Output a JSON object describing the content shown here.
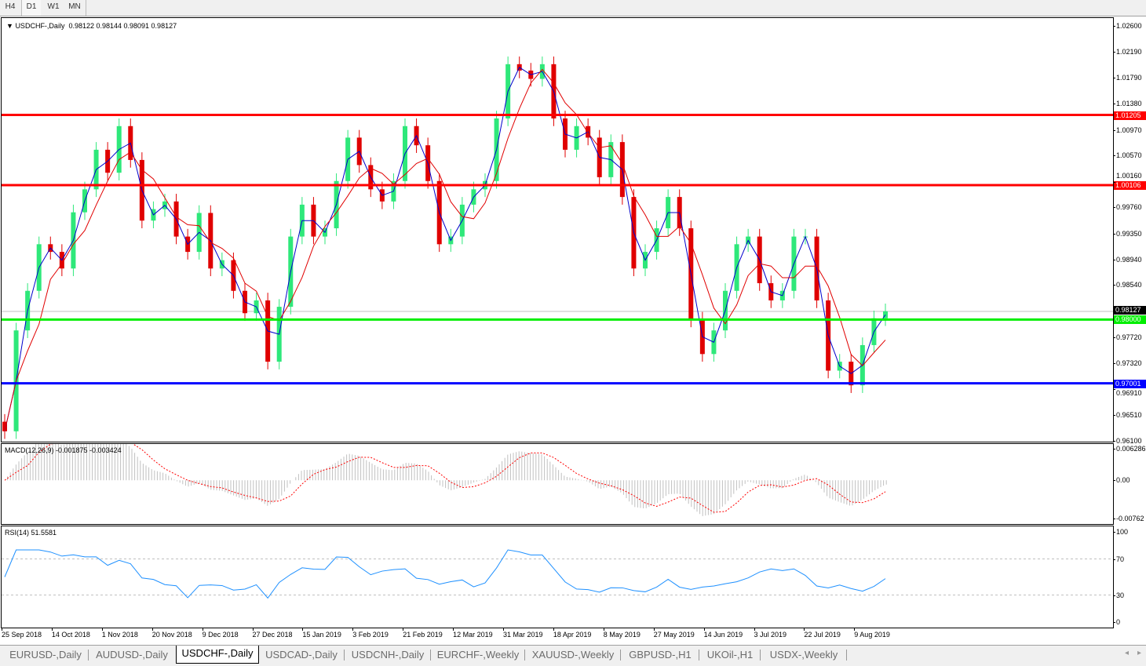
{
  "timeframes": [
    "H4",
    "D1",
    "W1",
    "MN"
  ],
  "active_timeframe": "D1",
  "main": {
    "title": "USDCHF-,Daily",
    "ohlc": "0.98122 0.98144 0.98091 0.98127",
    "price_ticks": [
      "1.02600",
      "1.02190",
      "1.01790",
      "1.01380",
      "1.00970",
      "1.00570",
      "1.00160",
      "0.99760",
      "0.99350",
      "0.98940",
      "0.98540",
      "0.97720",
      "0.97320",
      "0.96910",
      "0.96510",
      "0.96100"
    ],
    "levels": [
      {
        "price": "1.01205",
        "color": "#ff0000"
      },
      {
        "price": "1.00106",
        "color": "#ff0000"
      },
      {
        "price": "0.98000",
        "color": "#00ee00"
      },
      {
        "price": "0.97001",
        "color": "#0000ff"
      }
    ],
    "current_price": "0.98127"
  },
  "macd": {
    "title": "MACD(12,26,9) -0.001875 -0.003424",
    "ticks": [
      "0.006286",
      "0.00",
      "-0.00762"
    ]
  },
  "rsi": {
    "title": "RSI(14) 51.5581",
    "ticks": [
      "100",
      "70",
      "30",
      "0"
    ]
  },
  "dates": [
    "25 Sep 2018",
    "14 Oct 2018",
    "1 Nov 2018",
    "20 Nov 2018",
    "9 Dec 2018",
    "27 Dec 2018",
    "15 Jan 2019",
    "3 Feb 2019",
    "21 Feb 2019",
    "12 Mar 2019",
    "31 Mar 2019",
    "18 Apr 2019",
    "8 May 2019",
    "27 May 2019",
    "14 Jun 2019",
    "3 Jul 2019",
    "22 Jul 2019",
    "9 Aug 2019"
  ],
  "tabs": [
    "EURUSD-,Daily",
    "AUDUSD-,Daily",
    "USDCHF-,Daily",
    "USDCAD-,Daily",
    "USDCNH-,Daily",
    "EURCHF-,Weekly",
    "XAUUSD-,Weekly",
    "GBPUSD-,H1",
    "UKOil-,H1",
    "USDX-,Weekly"
  ],
  "active_tab": "USDCHF-,Daily",
  "colors": {
    "bull": "#2ee87a",
    "bear": "#e00000",
    "ma_fast": "#0000cc",
    "ma_slow": "#e00000",
    "macd_hist": "#c0c0c0",
    "macd_signal": "#ff0000",
    "rsi": "#1e90ff"
  },
  "chart_data": {
    "type": "candlestick",
    "symbol": "USDCHF-",
    "timeframe": "Daily",
    "ylim": [
      0.961,
      1.026
    ],
    "closes": [
      0.9625,
      0.9783,
      0.9845,
      0.9918,
      0.9906,
      0.988,
      0.9968,
      1.0004,
      1.0066,
      1.003,
      1.0103,
      1.005,
      0.9955,
      0.9973,
      0.9985,
      0.993,
      0.9906,
      0.9967,
      0.988,
      0.9893,
      0.9845,
      0.981,
      0.983,
      0.9734,
      0.982,
      0.993,
      0.998,
      0.993,
      0.9943,
      1.0017,
      1.0085,
      1.0042,
      1.0004,
      0.9985,
      1.0017,
      1.0103,
      1.0073,
      1.0017,
      0.9918,
      0.993,
      0.998,
      1.0004,
      1.0017,
      1.0115,
      1.02,
      1.019,
      1.0177,
      1.02,
      1.0115,
      1.0066,
      1.0103,
      1.0085,
      1.0023,
      1.0078,
      0.9992,
      0.988,
      0.9906,
      0.9943,
      0.9992,
      0.9943,
      0.98,
      0.9746,
      0.9783,
      0.9845,
      0.9918,
      0.993,
      0.9857,
      0.983,
      0.9845,
      0.993,
      0.993,
      0.983,
      0.972,
      0.9734,
      0.9697,
      0.976,
      0.9802,
      0.9813
    ]
  }
}
